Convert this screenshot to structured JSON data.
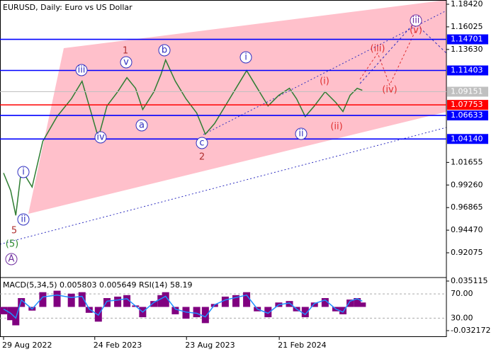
{
  "chart_data": [
    {
      "type": "line",
      "title": "EURUSD, Daily:  Euro vs US Dollar",
      "x": [
        "2022-08-29",
        "2022-09-12",
        "2022-09-22",
        "2022-10-03",
        "2022-10-24",
        "2022-11-14",
        "2022-12-12",
        "2023-01-09",
        "2023-01-30",
        "2023-02-13",
        "2023-03-03",
        "2023-03-20",
        "2023-04-10",
        "2023-04-28",
        "2023-05-15",
        "2023-05-29",
        "2023-06-20",
        "2023-07-04",
        "2023-07-13",
        "2023-08-01",
        "2023-08-22",
        "2023-09-12",
        "2023-09-29",
        "2023-10-17",
        "2023-11-07",
        "2023-11-28",
        "2023-12-19",
        "2024-01-09",
        "2024-01-30",
        "2024-02-20",
        "2024-03-12",
        "2024-03-26",
        "2024-04-12",
        "2024-04-30",
        "2024-05-21",
        "2024-06-11",
        "2024-06-25",
        "2024-07-09",
        "2024-07-23",
        "2024-08-02"
      ],
      "values": [
        1.0053,
        0.9866,
        0.9604,
        1.0091,
        0.9904,
        1.039,
        1.0652,
        1.0839,
        1.1026,
        1.0764,
        1.0427,
        1.0764,
        1.0914,
        1.1064,
        1.0951,
        1.0727,
        1.0914,
        1.1101,
        1.1251,
        1.1026,
        1.0839,
        1.0689,
        1.0465,
        1.0577,
        1.0764,
        1.0951,
        1.1139,
        1.0951,
        1.0764,
        1.0877,
        1.0951,
        1.0839,
        1.0652,
        1.0764,
        1.0914,
        1.0801,
        1.0704,
        1.0877,
        1.0951,
        1.0929
      ],
      "color": "#2e7d32",
      "xlim": [
        "2022-08-22",
        "2025-01-14"
      ],
      "xticks": [
        {
          "value": "2022-08-29",
          "label": "29 Aug 2022"
        },
        {
          "value": "2023-02-24",
          "label": "24 Feb 2023"
        },
        {
          "value": "2023-08-23",
          "label": "23 Aug 2023"
        },
        {
          "value": "2024-02-21",
          "label": "21 Feb 2024"
        }
      ],
      "ylim": [
        0.896,
        1.1887
      ],
      "yticks": [
        {
          "value": 1.1842,
          "label": "1.18420"
        },
        {
          "value": 1.16025,
          "label": "1.16025"
        },
        {
          "value": 1.1363,
          "label": "1.13630"
        },
        {
          "value": 1.01655,
          "label": "1.01655"
        },
        {
          "value": 0.9926,
          "label": "0.99260"
        },
        {
          "value": 0.96865,
          "label": "0.96865"
        },
        {
          "value": 0.9447,
          "label": "0.94470"
        },
        {
          "value": 0.92075,
          "label": "0.92075"
        }
      ],
      "levels": [
        {
          "value": 1.14701,
          "label": "1.14701",
          "color": "#0000ff"
        },
        {
          "value": 1.11403,
          "label": "1.11403",
          "color": "#0000ff"
        },
        {
          "value": 1.09151,
          "label": "1.09151",
          "color": "#c0c0c0"
        },
        {
          "value": 1.07753,
          "label": "1.07753",
          "color": "#ff0000"
        },
        {
          "value": 1.06633,
          "label": "1.06633",
          "color": "#0000ff"
        },
        {
          "value": 1.0414,
          "label": "1.04140",
          "color": "#0000ff"
        }
      ],
      "annotations": [
        "1",
        "2",
        "5",
        "(5)",
        "A",
        "i",
        "ii",
        "iii",
        "iv",
        "v",
        "a",
        "b",
        "c",
        "i",
        "ii",
        "(i)",
        "(ii)",
        "(iii)",
        "(iv)",
        "iii",
        "(v)"
      ]
    },
    {
      "type": "indicator",
      "title": "MACD(5,34,5) 0.005803 0.005649 RSI(14) 58.19",
      "x": [
        "2022-08-29",
        "2022-09-12",
        "2022-09-22",
        "2022-10-03",
        "2022-10-24",
        "2022-11-14",
        "2022-12-12",
        "2023-01-09",
        "2023-01-30",
        "2023-02-13",
        "2023-03-03",
        "2023-03-20",
        "2023-04-10",
        "2023-04-28",
        "2023-05-15",
        "2023-05-29",
        "2023-06-20",
        "2023-07-04",
        "2023-07-13",
        "2023-08-01",
        "2023-08-22",
        "2023-09-12",
        "2023-09-29",
        "2023-10-17",
        "2023-11-07",
        "2023-11-28",
        "2023-12-19",
        "2024-01-09",
        "2024-01-30",
        "2024-02-20",
        "2024-03-12",
        "2024-03-26",
        "2024-04-12",
        "2024-04-30",
        "2024-05-21",
        "2024-06-11",
        "2024-06-25",
        "2024-07-09",
        "2024-07-23",
        "2024-08-02"
      ],
      "series": [
        {
          "type": "bar",
          "color": "#800080",
          "values": [
            -0.01,
            -0.018,
            -0.025,
            0.012,
            -0.005,
            0.02,
            0.022,
            0.018,
            0.02,
            -0.008,
            -0.02,
            0.012,
            0.014,
            0.016,
            0.002,
            -0.014,
            0.008,
            0.016,
            0.02,
            -0.01,
            -0.016,
            -0.014,
            -0.022,
            0.004,
            0.014,
            0.016,
            0.02,
            -0.006,
            -0.014,
            0.006,
            0.008,
            -0.006,
            -0.014,
            0.006,
            0.012,
            -0.006,
            -0.01,
            0.01,
            0.012,
            0.006
          ]
        },
        {
          "type": "line",
          "axis": "y2",
          "color": "#1e90ff",
          "values": [
            45,
            38,
            30,
            60,
            45,
            65,
            68,
            64,
            66,
            45,
            35,
            58,
            60,
            62,
            50,
            40,
            56,
            62,
            66,
            45,
            40,
            38,
            32,
            52,
            60,
            64,
            68,
            45,
            38,
            52,
            55,
            45,
            36,
            54,
            60,
            45,
            40,
            58,
            62,
            58
          ]
        }
      ],
      "ylim": [
        -0.0399,
        0.0399
      ],
      "yticks": [
        0.035115,
        -0.032172
      ],
      "y2lim": [
        0,
        97
      ],
      "y2ticks": [
        {
          "value": 70,
          "label": "70.00"
        },
        {
          "value": 30,
          "label": "30.00"
        }
      ]
    }
  ]
}
